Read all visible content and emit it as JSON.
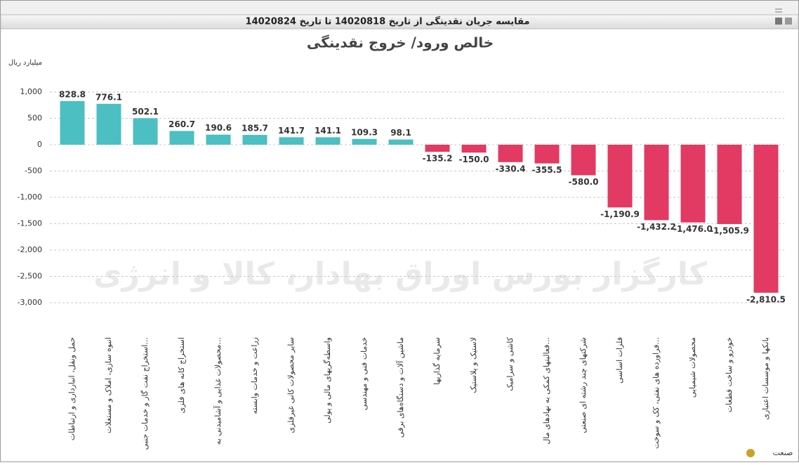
{
  "window_title": "مقایسه جریان نقدینگی از تاریخ 14020818 تا تاریخ 14020824",
  "watermark": "کارگزار بورس اوراق بهادار، کالا و انرژی",
  "chart_data": {
    "type": "bar",
    "title": "خالص ورود/ خروج نقدینگی",
    "y_axis_label": "میلیارد ریال",
    "x_axis_label": "صنعت",
    "categories": [
      "حمل ونقل، انبارداری و ارتباطات",
      "انبوه سازی، املاک و مستغلات",
      "استخراج نفت گاز و خدمات جنبی...",
      "استخراج کانه های فلزی",
      "محصولات غذایی و آشامیدنی به...",
      "زراعت و خدمات وابسته",
      "سایر محصولات کانی غیرفلزی",
      "واسطه‌گریهای مالی و پولی",
      "خدمات فنی و مهندسی",
      "ماشین آلات و دستگاه‌های برقی",
      "سرمایه گذاریها",
      "لاستیک و پلاستیک",
      "کاشی و سرامیک",
      "فعالیتهای کمکی به نهادهای مال...",
      "شرکتهای چند رشته ای صنعتی",
      "فلزات اساسی",
      "فراورده های نفتی، کک و سوخت...",
      "محصولات شیمیایی",
      "خودرو و ساخت قطعات",
      "بانکها و موسسات اعتباری"
    ],
    "values": [
      828.8,
      776.1,
      502.1,
      260.7,
      190.6,
      185.7,
      141.7,
      141.1,
      109.3,
      98.1,
      -135.2,
      -150.0,
      -330.4,
      -355.5,
      -580.0,
      -1190.9,
      -1432.2,
      -1476.0,
      -1505.9,
      -2810.5
    ],
    "value_labels": [
      "828.8",
      "776.1",
      "502.1",
      "260.7",
      "190.6",
      "185.7",
      "141.7",
      "141.1",
      "109.3",
      "98.1",
      "-135.2",
      "-150.0",
      "-330.4",
      "-355.5",
      "-580.0",
      "-1,190.9",
      "-1,432.2",
      "-1,476.0",
      "-1,505.9",
      "-2,810.5"
    ],
    "positive_color": "#4bbfc2",
    "negative_color": "#e23a62",
    "ylim": [
      -3200,
      1300
    ],
    "yticks": [
      {
        "value": 1000,
        "label": "1,000"
      },
      500,
      0,
      -500,
      {
        "value": -1000,
        "label": "-1,000"
      },
      {
        "value": -1500,
        "label": "-1,500"
      },
      {
        "value": -2000,
        "label": "-2,000"
      },
      {
        "value": -2500,
        "label": "-2,500"
      },
      {
        "value": -3000,
        "label": "-3,000"
      }
    ],
    "grid": true
  }
}
